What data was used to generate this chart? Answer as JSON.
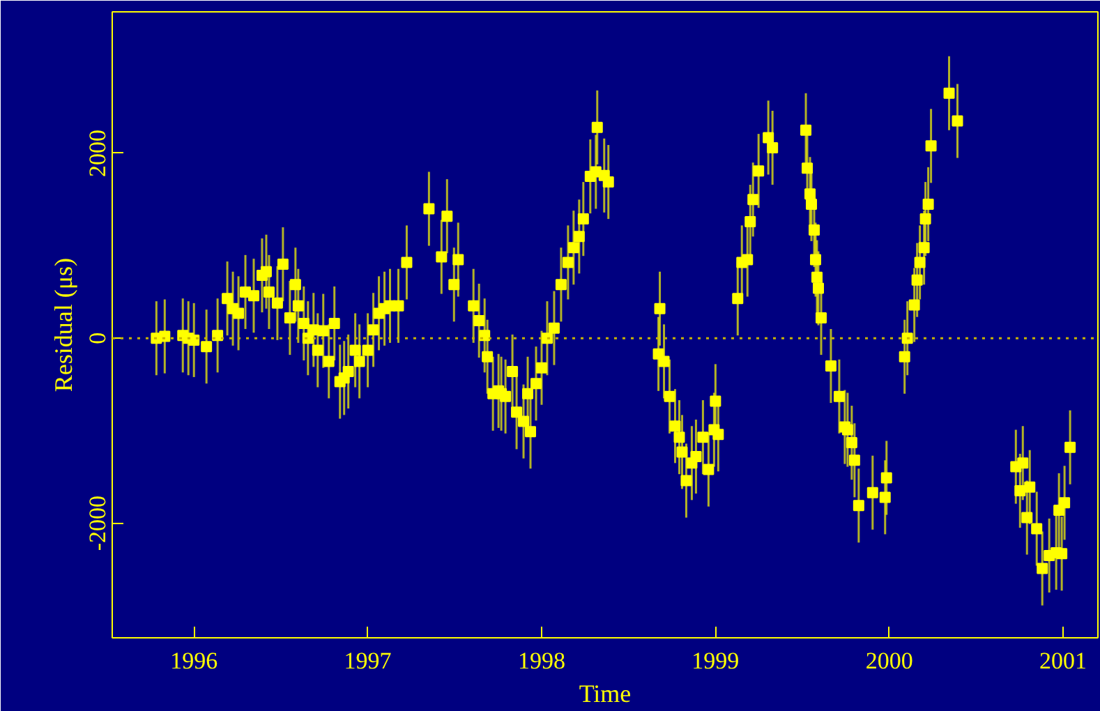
{
  "chart_data": {
    "type": "scatter",
    "xlabel": "Time",
    "ylabel": "Residual (μs)",
    "marker": "square",
    "xlim": [
      1995.53,
      2001.2
    ],
    "ylim": [
      -3240,
      3530
    ],
    "xticks": [
      1996,
      1997,
      1998,
      1999,
      2000,
      2001
    ],
    "yticks": [
      -2000,
      0,
      2000
    ],
    "ref_lines": [
      {
        "axis": "y",
        "value": 0,
        "line_style": "dotted",
        "color": "#c8b400"
      }
    ],
    "x": [
      1995.784,
      1995.832,
      1995.936,
      1995.968,
      1996.0,
      1996.072,
      1996.136,
      1996.192,
      1996.224,
      1996.256,
      1996.296,
      1996.344,
      1996.392,
      1996.416,
      1996.432,
      1996.48,
      1996.512,
      1996.552,
      1996.584,
      1996.6,
      1996.632,
      1996.656,
      1996.688,
      1996.712,
      1996.744,
      1996.776,
      1996.808,
      1996.84,
      1996.864,
      1996.888,
      1996.928,
      1996.952,
      1997.0,
      1997.032,
      1997.064,
      1997.096,
      1997.128,
      1997.176,
      1997.224,
      1997.352,
      1997.424,
      1997.456,
      1997.496,
      1997.52,
      1997.608,
      1997.64,
      1997.672,
      1997.688,
      1997.72,
      1997.752,
      1997.768,
      1997.792,
      1997.832,
      1997.856,
      1997.896,
      1997.92,
      1997.936,
      1997.968,
      1998.0,
      1998.032,
      1998.072,
      1998.112,
      1998.152,
      1998.184,
      1998.216,
      1998.24,
      1998.28,
      1998.312,
      1998.32,
      1998.36,
      1998.384,
      1998.68,
      1998.672,
      1998.704,
      1998.736,
      1998.768,
      1998.792,
      1998.808,
      1998.832,
      1998.864,
      1998.888,
      1998.928,
      1998.96,
      1999.0,
      1999.016,
      1998.992,
      1999.128,
      1999.152,
      1999.184,
      1999.2,
      1999.216,
      1999.248,
      1999.304,
      1999.328,
      1999.52,
      1999.528,
      1999.544,
      1999.552,
      1999.568,
      1999.576,
      1999.584,
      1999.592,
      1999.608,
      1999.664,
      1999.712,
      1999.744,
      1999.76,
      1999.784,
      1999.8,
      1999.824,
      1999.904,
      1999.984,
      1999.976,
      2000.088,
      2000.104,
      2000.144,
      2000.16,
      2000.176,
      2000.2,
      2000.208,
      2000.224,
      2000.24,
      2000.344,
      2000.392,
      2000.728,
      2000.752,
      2000.768,
      2000.792,
      2000.808,
      2000.848,
      2000.88,
      2000.92,
      2000.96,
      2000.976,
      2000.992,
      2001.008,
      2001.04
    ],
    "series": [
      {
        "color": "#ffff00",
        "values": [
          0,
          20,
          30,
          0,
          -20,
          -90,
          30,
          430,
          320,
          270,
          500,
          460,
          680,
          720,
          500,
          380,
          800,
          220,
          580,
          350,
          160,
          0,
          90,
          -130,
          80,
          -250,
          160,
          -470,
          -430,
          -360,
          -130,
          -250,
          -130,
          90,
          270,
          320,
          350,
          350,
          820,
          1400,
          880,
          1320,
          580,
          850,
          350,
          190,
          30,
          -200,
          -600,
          -570,
          -600,
          -630,
          -360,
          -800,
          -900,
          -600,
          -1010,
          -490,
          -320,
          0,
          110,
          580,
          820,
          980,
          1100,
          1290,
          1750,
          1800,
          2280,
          1760,
          1690,
          320,
          -170,
          -250,
          -630,
          -950,
          -1070,
          -1230,
          -1540,
          -1350,
          -1280,
          -1070,
          -1420,
          -680,
          -1040,
          -990,
          430,
          820,
          850,
          1260,
          1500,
          1810,
          2170,
          2060,
          2250,
          1840,
          1560,
          1450,
          1170,
          850,
          660,
          540,
          220,
          -300,
          -630,
          -960,
          -990,
          -1130,
          -1320,
          -1810,
          -1670,
          -1510,
          -1720,
          -200,
          0,
          360,
          630,
          820,
          980,
          1290,
          1450,
          2080,
          2650,
          2350,
          -1390,
          -1650,
          -1350,
          -1940,
          -1610,
          -2060,
          -2490,
          -2350,
          -2320,
          -1860,
          -2330,
          -1780,
          -1180
        ],
        "errors": [
          400,
          400,
          400,
          400,
          400,
          400,
          400,
          400,
          400,
          400,
          400,
          400,
          400,
          400,
          400,
          400,
          400,
          400,
          400,
          400,
          400,
          400,
          400,
          400,
          400,
          400,
          400,
          400,
          400,
          400,
          400,
          400,
          400,
          400,
          400,
          400,
          400,
          400,
          400,
          400,
          400,
          400,
          400,
          400,
          400,
          400,
          400,
          400,
          400,
          400,
          400,
          400,
          400,
          400,
          400,
          400,
          400,
          400,
          400,
          400,
          400,
          400,
          400,
          400,
          400,
          400,
          400,
          400,
          400,
          400,
          400,
          400,
          400,
          400,
          400,
          400,
          400,
          400,
          400,
          400,
          400,
          400,
          400,
          400,
          400,
          400,
          400,
          400,
          400,
          400,
          400,
          400,
          400,
          400,
          400,
          400,
          400,
          400,
          400,
          400,
          400,
          400,
          400,
          400,
          400,
          400,
          400,
          400,
          400,
          400,
          400,
          400,
          400,
          400,
          400,
          400,
          400,
          400,
          400,
          400,
          400,
          400,
          400,
          400,
          400,
          400,
          400,
          400,
          400,
          400,
          400,
          400,
          400,
          400,
          400,
          400,
          400
        ]
      }
    ]
  }
}
